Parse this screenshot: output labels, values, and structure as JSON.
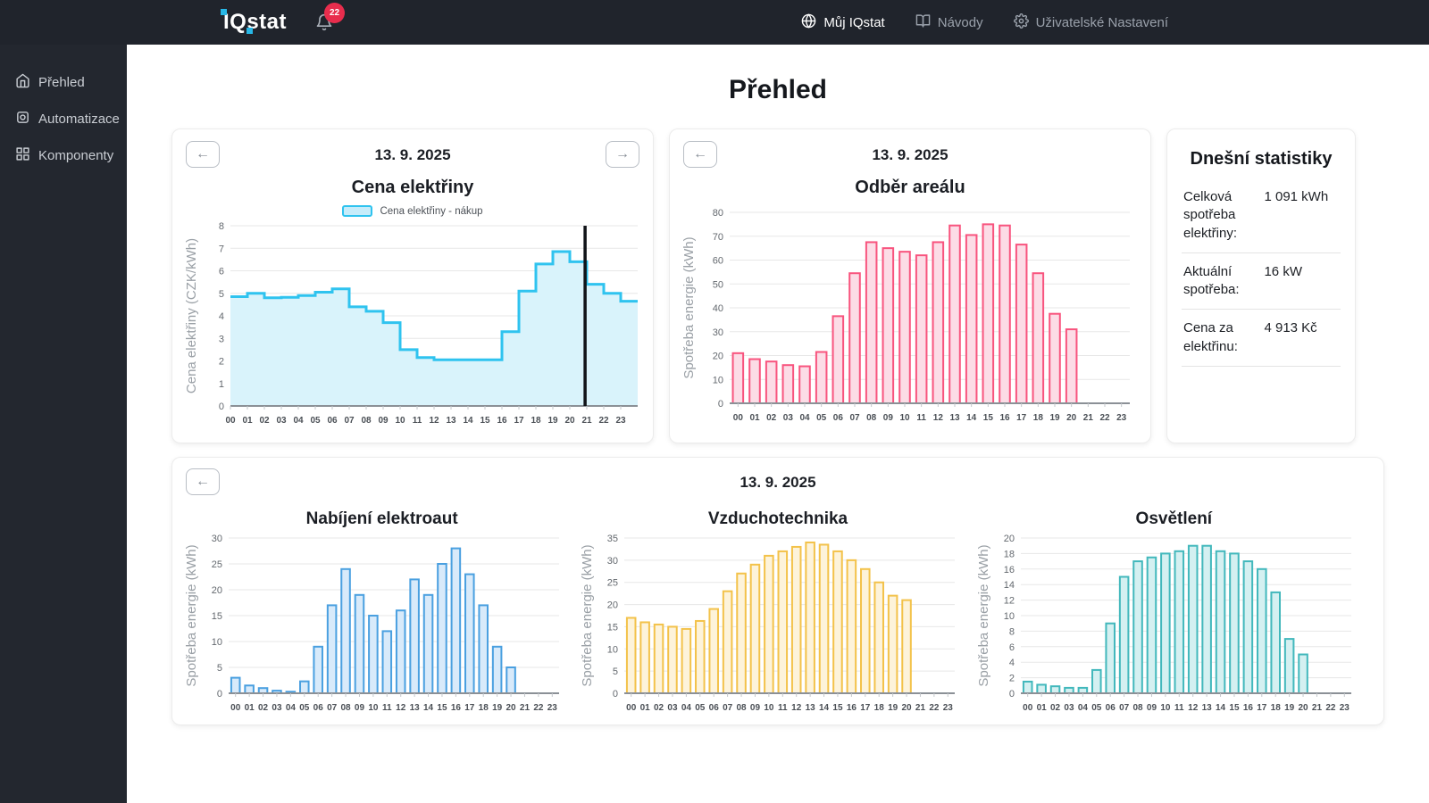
{
  "navbar": {
    "logo_text": "IQstat",
    "notification_count": "22",
    "bell_icon": "bell-icon",
    "items": [
      {
        "label": "Můj IQstat",
        "icon": "globe-icon",
        "active": true
      },
      {
        "label": "Návody",
        "icon": "book-icon",
        "active": false
      },
      {
        "label": "Uživatelské Nastavení",
        "icon": "gear-icon",
        "active": false
      }
    ],
    "bg_color": "#20242c",
    "badge_color": "#e82d4d"
  },
  "sidebar": {
    "items": [
      {
        "label": "Přehled",
        "icon": "home-icon"
      },
      {
        "label": "Automatizace",
        "icon": "automation-icon"
      },
      {
        "label": "Komponenty",
        "icon": "components-icon"
      }
    ],
    "bg_color": "#23272f"
  },
  "page_title": "Přehled",
  "controls": {
    "prev_label": "←",
    "next_label": "→"
  },
  "cards": {
    "price": {
      "date": "13. 9. 2025"
    },
    "odber": {
      "date": "13. 9. 2025"
    },
    "bottom": {
      "date": "13. 9. 2025"
    }
  },
  "stats": {
    "title": "Dnešní statistiky",
    "rows": [
      {
        "label": "Celková spotřeba elektřiny:",
        "value": "1 091 kWh"
      },
      {
        "label": "Aktuální spotřeba:",
        "value": "16 kW"
      },
      {
        "label": "Cena za elektřinu:",
        "value": "4 913 Kč"
      }
    ]
  },
  "chart_data": [
    {
      "id": "price",
      "type": "area",
      "title": "Cena elektřiny",
      "legend": "Cena elektřiny - nákup",
      "ylabel": "Cena elektřiny (CZK/kWh)",
      "ylim": [
        0,
        8
      ],
      "ytick": 1,
      "grid": true,
      "now_line": 20.9,
      "line_color": "#2fc3ef",
      "fill_color": "#d9f3fb",
      "now_line_color": "#101318",
      "categories": [
        "00",
        "01",
        "02",
        "03",
        "04",
        "05",
        "06",
        "07",
        "08",
        "09",
        "10",
        "11",
        "12",
        "13",
        "14",
        "15",
        "16",
        "17",
        "18",
        "19",
        "20",
        "21",
        "22",
        "23"
      ],
      "values": [
        4.85,
        5.0,
        4.8,
        4.82,
        4.9,
        5.05,
        5.2,
        4.4,
        4.2,
        3.7,
        2.5,
        2.15,
        2.05,
        2.05,
        2.05,
        2.05,
        3.3,
        5.1,
        6.3,
        6.85,
        6.4,
        5.4,
        5.0,
        4.65
      ]
    },
    {
      "id": "odber",
      "type": "bar",
      "title": "Odběr areálu",
      "ylabel": "Spotřeba energie (kWh)",
      "ylim": [
        0,
        80
      ],
      "ytick": 10,
      "grid": true,
      "stroke": "#f8547e",
      "fill": "#fcdce6",
      "categories": [
        "00",
        "01",
        "02",
        "03",
        "04",
        "05",
        "06",
        "07",
        "08",
        "09",
        "10",
        "11",
        "12",
        "13",
        "14",
        "15",
        "16",
        "17",
        "18",
        "19",
        "20",
        "21",
        "22",
        "23"
      ],
      "values": [
        21,
        18.5,
        17.5,
        16,
        15.5,
        21.5,
        36.5,
        54.5,
        67.5,
        65,
        63.5,
        62,
        67.5,
        74.5,
        70.5,
        75,
        74.5,
        66.5,
        54.5,
        37.5,
        31,
        null,
        null,
        null
      ]
    },
    {
      "id": "nabijeni",
      "type": "bar",
      "title": "Nabíjení elektroaut",
      "ylabel": "Spotřeba energie (kWh)",
      "ylim": [
        0,
        30
      ],
      "ytick": 5,
      "grid": true,
      "stroke": "#4aa0e0",
      "fill": "#d8eafa",
      "categories": [
        "00",
        "01",
        "02",
        "03",
        "04",
        "05",
        "06",
        "07",
        "08",
        "09",
        "10",
        "11",
        "12",
        "13",
        "14",
        "15",
        "16",
        "17",
        "18",
        "19",
        "20",
        "21",
        "22",
        "23"
      ],
      "values": [
        3,
        1.5,
        1,
        0.5,
        0.3,
        2.3,
        9,
        17,
        24,
        19,
        15,
        12,
        16,
        22,
        19,
        25,
        28,
        23,
        17,
        9,
        5,
        null,
        null,
        null
      ]
    },
    {
      "id": "vzduchotechnika",
      "type": "bar",
      "title": "Vzduchotechnika",
      "ylabel": "Spotřeba energie (kWh)",
      "ylim": [
        0,
        35
      ],
      "ytick": 5,
      "grid": true,
      "stroke": "#f3c24a",
      "fill": "#fdf3da",
      "categories": [
        "00",
        "01",
        "02",
        "03",
        "04",
        "05",
        "06",
        "07",
        "08",
        "09",
        "10",
        "11",
        "12",
        "13",
        "14",
        "15",
        "16",
        "17",
        "18",
        "19",
        "20",
        "21",
        "22",
        "23"
      ],
      "values": [
        17,
        16,
        15.5,
        15,
        14.5,
        16.3,
        19,
        23,
        27,
        29,
        31,
        32,
        33,
        34,
        33.5,
        32,
        30,
        28,
        25,
        22,
        21,
        null,
        null,
        null
      ]
    },
    {
      "id": "osvetleni",
      "type": "bar",
      "title": "Osvětlení",
      "ylabel": "Spotřeba energie (kWh)",
      "ylim": [
        0,
        20
      ],
      "ytick": 2,
      "grid": true,
      "stroke": "#42b8bc",
      "fill": "#d4f0f1",
      "categories": [
        "00",
        "01",
        "02",
        "03",
        "04",
        "05",
        "06",
        "07",
        "08",
        "09",
        "10",
        "11",
        "12",
        "13",
        "14",
        "15",
        "16",
        "17",
        "18",
        "19",
        "20",
        "21",
        "22",
        "23"
      ],
      "values": [
        1.5,
        1.1,
        0.9,
        0.7,
        0.7,
        3,
        9,
        15,
        17,
        17.5,
        18,
        18.3,
        19,
        19,
        18.3,
        18,
        17,
        16,
        13,
        7,
        5,
        null,
        null,
        null
      ]
    }
  ]
}
